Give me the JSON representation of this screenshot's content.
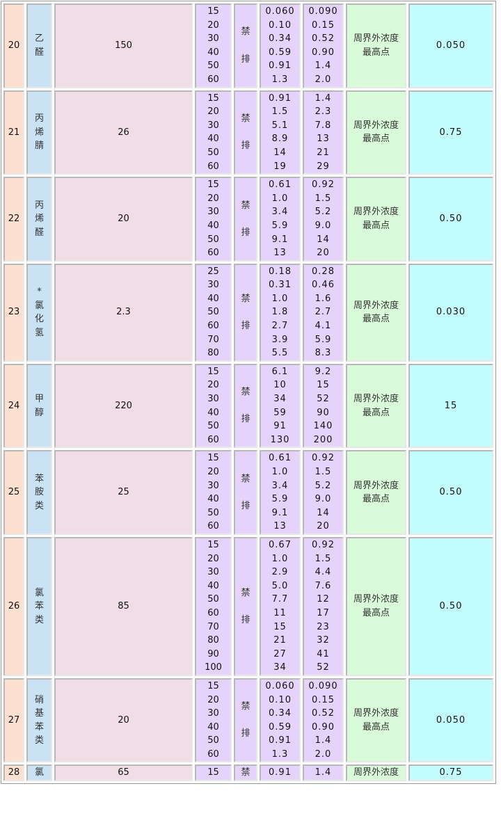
{
  "rows": [
    {
      "no": "20",
      "name": "乙\n醛",
      "rate": "150",
      "heights": [
        "15",
        "20",
        "30",
        "40",
        "50",
        "60"
      ],
      "ban": "禁\n\n排",
      "c1": [
        "0.060",
        "0.10",
        "0.34",
        "0.59",
        "0.91",
        "1.3"
      ],
      "c2": [
        "0.090",
        "0.15",
        "0.52",
        "0.90",
        "1.4",
        "2.0"
      ],
      "monitor": "周界外浓度\n最高点",
      "limit": "0.050"
    },
    {
      "no": "21",
      "name": "丙\n烯\n腈",
      "rate": "26",
      "heights": [
        "15",
        "20",
        "30",
        "40",
        "50",
        "60"
      ],
      "ban": "禁\n\n排",
      "c1": [
        "0.91",
        "1.5",
        "5.1",
        "8.9",
        "14",
        "19"
      ],
      "c2": [
        "1.4",
        "2.3",
        "7.8",
        "13",
        "21",
        "29"
      ],
      "monitor": "周界外浓度\n最高点",
      "limit": "0.75"
    },
    {
      "no": "22",
      "name": "丙\n烯\n醛",
      "rate": "20",
      "heights": [
        "15",
        "20",
        "30",
        "40",
        "50",
        "60"
      ],
      "ban": "禁\n\n排",
      "c1": [
        "0.61",
        "1.0",
        "3.4",
        "5.9",
        "9.1",
        "13"
      ],
      "c2": [
        "0.92",
        "1.5",
        "5.2",
        "9.0",
        "14",
        "20"
      ],
      "monitor": "周界外浓度\n最高点",
      "limit": "0.50"
    },
    {
      "no": "23",
      "name": "*\n氯\n化\n氢",
      "rate": "2.3",
      "heights": [
        "25",
        "30",
        "40",
        "50",
        "60",
        "70",
        "80"
      ],
      "ban": "禁\n\n排",
      "c1": [
        "0.18",
        "0.31",
        "1.0",
        "1.8",
        "2.7",
        "3.9",
        "5.5"
      ],
      "c2": [
        "0.28",
        "0.46",
        "1.6",
        "2.7",
        "4.1",
        "5.9",
        "8.3"
      ],
      "monitor": "周界外浓度\n最高点",
      "limit": "0.030"
    },
    {
      "no": "24",
      "name": "甲\n醇",
      "rate": "220",
      "heights": [
        "15",
        "20",
        "30",
        "40",
        "50",
        "60"
      ],
      "ban": "禁\n\n排",
      "c1": [
        "6.1",
        "10",
        "34",
        "59",
        "91",
        "130"
      ],
      "c2": [
        "9.2",
        "15",
        "52",
        "90",
        "140",
        "200"
      ],
      "monitor": "周界外浓度\n最高点",
      "limit": "15"
    },
    {
      "no": "25",
      "name": "苯\n胺\n类",
      "rate": "25",
      "heights": [
        "15",
        "20",
        "30",
        "40",
        "50",
        "60"
      ],
      "ban": "禁\n\n排",
      "c1": [
        "0.61",
        "1.0",
        "3.4",
        "5.9",
        "9.1",
        "13"
      ],
      "c2": [
        "0.92",
        "1.5",
        "5.2",
        "9.0",
        "14",
        "20"
      ],
      "monitor": "周界外浓度\n最高点",
      "limit": "0.50"
    },
    {
      "no": "26",
      "name": "氯\n苯\n类",
      "rate": "85",
      "heights": [
        "15",
        "20",
        "30",
        "40",
        "50",
        "60",
        "70",
        "80",
        "90",
        "100"
      ],
      "ban": "禁\n\n排",
      "c1": [
        "0.67",
        "1.0",
        "2.9",
        "5.0",
        "7.7",
        "11",
        "15",
        "21",
        "27",
        "34"
      ],
      "c2": [
        "0.92",
        "1.5",
        "4.4",
        "7.6",
        "12",
        "17",
        "23",
        "32",
        "41",
        "52"
      ],
      "monitor": "周界外浓度\n最高点",
      "limit": "0.50"
    },
    {
      "no": "27",
      "name": "硝\n基\n苯\n类",
      "rate": "20",
      "heights": [
        "15",
        "20",
        "30",
        "40",
        "50",
        "60"
      ],
      "ban": "禁\n\n排",
      "c1": [
        "0.060",
        "0.10",
        "0.34",
        "0.59",
        "0.91",
        "1.3"
      ],
      "c2": [
        "0.090",
        "0.15",
        "0.52",
        "0.90",
        "1.4",
        "2.0"
      ],
      "monitor": "周界外浓度\n最高点",
      "limit": "0.050"
    },
    {
      "no": "28",
      "name": "氯",
      "rate": "65",
      "heights": [
        "15"
      ],
      "ban": "禁",
      "c1": [
        "0.91"
      ],
      "c2": [
        "1.4"
      ],
      "monitor": "周界外浓度",
      "limit": "0.75"
    }
  ]
}
